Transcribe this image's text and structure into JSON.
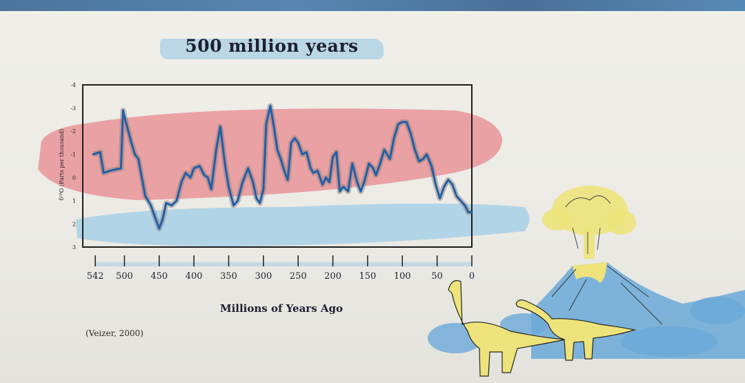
{
  "title": "500 million years",
  "citation": "(Veizer, 2000)",
  "colors": {
    "warm_band": "#e98f93",
    "cool_band": "#a8d0e8",
    "line": "#1f5fa6",
    "range": "#8a7a78",
    "frame": "#1b1b1b",
    "volcano": "#6aa9d8",
    "ash": "#ede37a"
  },
  "chart_data": {
    "type": "line",
    "title": "500 million years",
    "xlabel": "Millions of Years Ago",
    "ylabel": "δ¹⁸O (Parts per thousand)",
    "xlim": [
      560,
      0
    ],
    "ylim": [
      3,
      -4
    ],
    "y_inverted": true,
    "x_ticks": [
      542,
      500,
      450,
      400,
      350,
      300,
      250,
      200,
      150,
      100,
      50,
      0
    ],
    "y_ticks": [
      -4,
      -3,
      -2,
      -1,
      0,
      1,
      2,
      3
    ],
    "y_tick_labels": [
      "-4",
      "-3",
      "-2",
      "-1",
      "0",
      "1",
      "2",
      "3"
    ],
    "grid": false,
    "legend": "none",
    "series": [
      {
        "x": [
          545,
          535,
          530,
          520,
          505,
          502,
          498,
          490,
          485,
          480,
          475,
          470,
          462,
          455,
          450,
          445,
          440,
          432,
          425,
          418,
          412,
          405,
          400,
          392,
          385,
          380,
          375,
          368,
          362,
          355,
          350,
          343,
          337,
          330,
          322,
          315,
          310,
          305,
          300,
          296,
          290,
          285,
          280,
          275,
          270,
          265,
          260,
          255,
          250,
          244,
          238,
          232,
          228,
          222,
          215,
          210,
          205,
          200,
          195,
          190,
          185,
          178,
          172,
          165,
          160,
          155,
          148,
          142,
          138,
          132,
          126,
          118,
          112,
          106,
          100,
          94,
          88,
          82,
          76,
          70,
          65,
          58,
          52,
          46,
          40,
          34,
          28,
          22,
          16,
          10,
          5,
          0
        ],
        "y": [
          -1.0,
          -1.1,
          -0.2,
          -0.3,
          -0.4,
          -2.9,
          -2.4,
          -1.5,
          -1.0,
          -0.8,
          0.0,
          0.8,
          1.2,
          1.8,
          2.2,
          1.8,
          1.1,
          1.2,
          1.0,
          0.2,
          -0.2,
          0.0,
          -0.4,
          -0.5,
          -0.1,
          0.0,
          0.5,
          -1.2,
          -2.2,
          -0.5,
          0.4,
          1.2,
          1.0,
          0.2,
          -0.4,
          0.2,
          0.9,
          1.1,
          0.5,
          -2.3,
          -3.1,
          -2.2,
          -1.2,
          -0.8,
          -0.3,
          0.1,
          -1.5,
          -1.7,
          -1.5,
          -1.0,
          -1.1,
          -0.4,
          -0.2,
          -0.3,
          0.3,
          0.0,
          0.2,
          -0.9,
          -1.1,
          0.6,
          0.4,
          0.6,
          -0.6,
          0.2,
          0.6,
          0.2,
          -0.6,
          -0.4,
          -0.1,
          -0.6,
          -1.2,
          -0.8,
          -1.7,
          -2.3,
          -2.4,
          -2.4,
          -1.9,
          -1.2,
          -0.7,
          -0.8,
          -1.0,
          -0.5,
          0.3,
          0.9,
          0.4,
          0.1,
          0.3,
          0.8,
          1.0,
          1.2,
          1.5,
          1.5
        ]
      }
    ]
  }
}
